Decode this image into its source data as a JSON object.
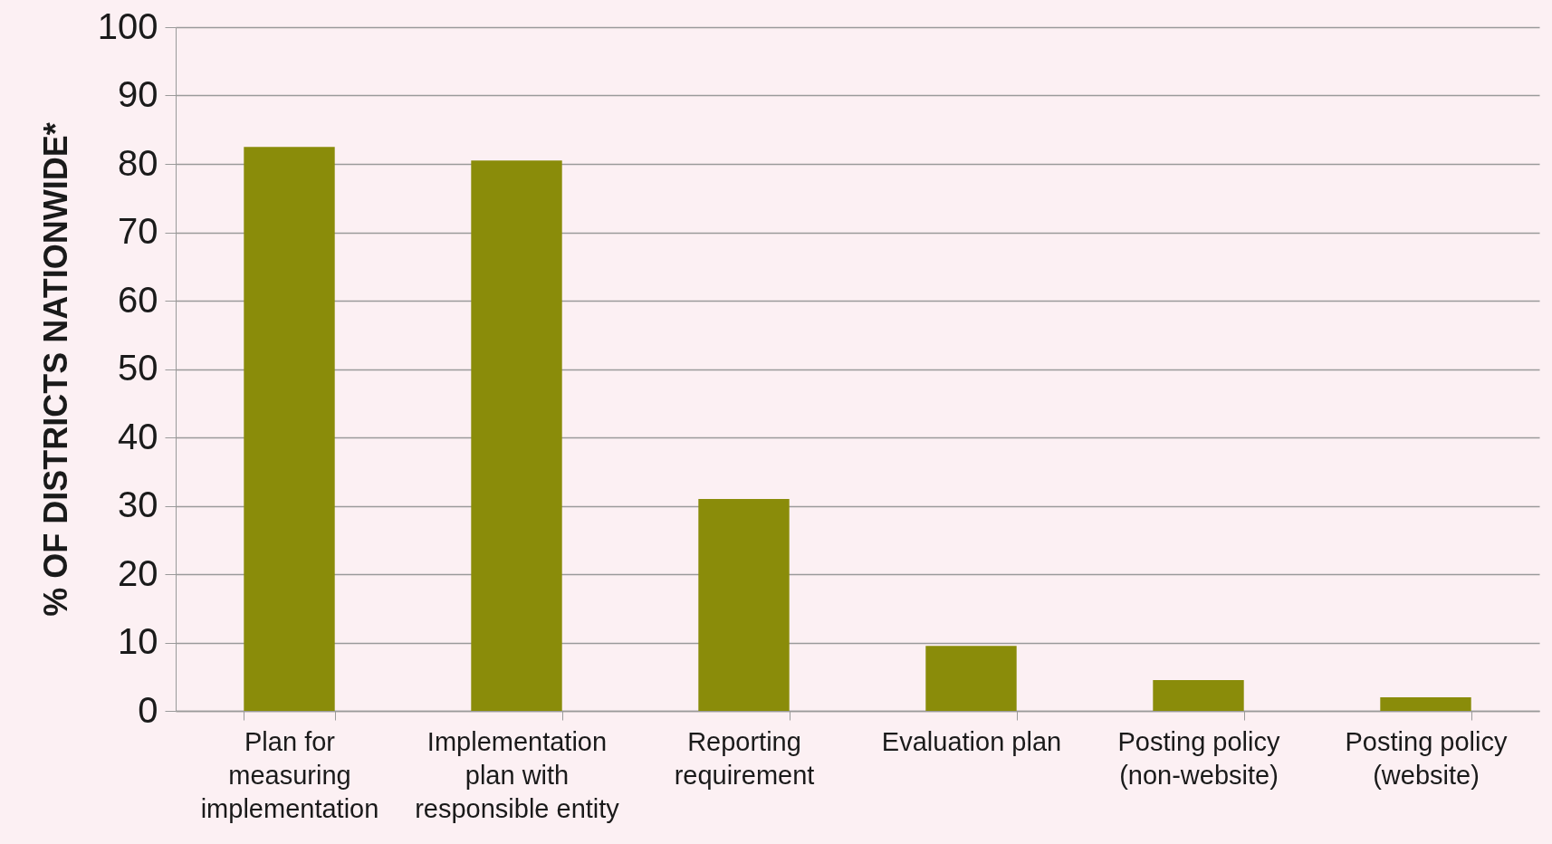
{
  "chart_data": {
    "type": "bar",
    "ylabel": "% OF DISTRICTS NATIONWIDE*",
    "categories": [
      "Plan for measuring implementation",
      "Implementation plan with responsible entity",
      "Reporting requirement",
      "Evaluation plan",
      "Posting policy (non-website)",
      "Posting policy (website)"
    ],
    "values": [
      82.5,
      80.5,
      31,
      9.5,
      4.5,
      2
    ],
    "color": "#8a8c0a",
    "ylim": [
      0,
      100
    ],
    "yticks": [
      0,
      10,
      20,
      30,
      40,
      50,
      60,
      70,
      80,
      90,
      100
    ],
    "grid": "y"
  }
}
